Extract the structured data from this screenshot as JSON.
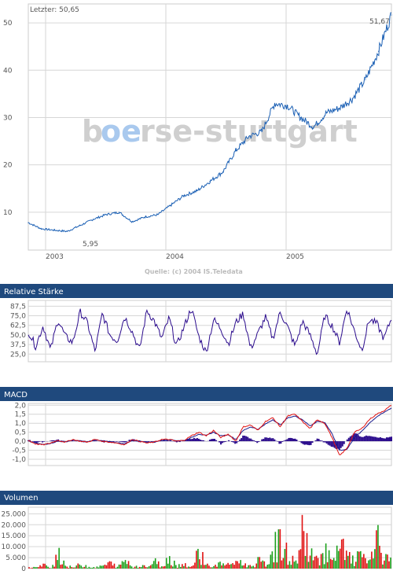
{
  "watermark": {
    "part1": "b",
    "part2": "oe",
    "part3": "rse-stuttgart"
  },
  "price_panel": {
    "last_label": "Letzter: 50,65",
    "source": "Quelle: (c) 2004 IS.Teledata",
    "min_label": "5,95",
    "max_label": "51,67"
  },
  "rsi_panel": {
    "title": "Relative Stärke"
  },
  "macd_panel": {
    "title": "MACD"
  },
  "volume_panel": {
    "title": "Volumen"
  },
  "colors": {
    "header_bg": "#1f497d",
    "price_line": "#1a5fb4",
    "rsi_line": "#2a0a8c",
    "macd_line": "#e01010",
    "signal_line": "#1a1a8c",
    "histogram": "#2a0a8c",
    "volume_up": "#1ba01b",
    "volume_down": "#e01010"
  },
  "chart_data": [
    {
      "type": "line",
      "title": "",
      "x_ticks": [
        "2003",
        "2004",
        "2005"
      ],
      "y_ticks": [
        "10",
        "20",
        "30",
        "40",
        "50"
      ],
      "ylim": [
        2,
        54
      ],
      "grid": true,
      "series": [
        {
          "name": "",
          "x": [
            "2002-11",
            "2003-01",
            "2003-03",
            "2003-05",
            "2003-06",
            "2003-07",
            "2003-09",
            "2003-11",
            "2004-01",
            "2004-02",
            "2004-03",
            "2004-05",
            "2004-07",
            "2004-08",
            "2004-09",
            "2004-10",
            "2004-11",
            "2004-12",
            "2005-01",
            "2005-02",
            "2005-03",
            "2005-04",
            "2005-05",
            "2005-06",
            "2005-07",
            "2005-08",
            "2005-09",
            "2005-10",
            "2005-11"
          ],
          "values": [
            7.8,
            6.5,
            6.2,
            5.95,
            7.2,
            8.5,
            9.5,
            10.0,
            8.0,
            9.0,
            9.5,
            11.5,
            13.5,
            14.5,
            16.5,
            18.5,
            23.0,
            26.0,
            27.0,
            33.0,
            32.5,
            30.0,
            28.0,
            31.0,
            32.0,
            34.0,
            38.0,
            44.0,
            51.67
          ]
        }
      ]
    },
    {
      "type": "line",
      "title": "Relative Stärke",
      "y_ticks": [
        "87,5",
        "75,0",
        "62,5",
        "50,0",
        "37,5",
        "25,0"
      ],
      "ylim": [
        15,
        95
      ],
      "series": [
        {
          "name": "",
          "values": [
            55,
            35,
            62,
            30,
            70,
            48,
            40,
            80,
            65,
            28,
            78,
            50,
            42,
            74,
            55,
            30,
            82,
            68,
            45,
            72,
            35,
            60,
            85,
            48,
            27,
            70,
            58,
            38,
            66,
            78,
            32,
            52,
            73,
            45,
            80,
            60,
            35,
            68,
            50,
            25,
            75,
            62,
            40,
            85,
            55,
            30,
            70,
            65,
            45,
            72
          ]
        }
      ]
    },
    {
      "type": "line",
      "title": "MACD",
      "y_ticks": [
        "2,0",
        "1,5",
        "1,0",
        "0,5",
        "0,0",
        "-0,5",
        "-1,0"
      ],
      "ylim": [
        -1.35,
        2.1
      ],
      "series": [
        {
          "name": "",
          "values": [
            0.05,
            -0.15,
            -0.2,
            -0.1,
            0.05,
            -0.05,
            0.1,
            0.0,
            -0.05,
            0.1,
            0.0,
            -0.05,
            -0.1,
            -0.2,
            0.1,
            0.0,
            -0.1,
            -0.05,
            0.1,
            0.1,
            0.0,
            0.05,
            0.3,
            0.5,
            0.3,
            0.6,
            0.2,
            0.4,
            0.0,
            0.8,
            0.9,
            0.6,
            1.1,
            1.3,
            0.8,
            1.4,
            1.5,
            1.1,
            0.7,
            1.2,
            1.0,
            0.2,
            -0.8,
            -0.4,
            0.5,
            0.7,
            1.2,
            1.5,
            1.7,
            2.0
          ]
        },
        {
          "name": "",
          "values": [
            0.0,
            -0.1,
            -0.18,
            -0.12,
            0.0,
            -0.03,
            0.06,
            0.02,
            -0.03,
            0.06,
            0.03,
            -0.02,
            -0.08,
            -0.15,
            0.02,
            0.02,
            -0.06,
            -0.05,
            0.05,
            0.08,
            0.04,
            0.04,
            0.2,
            0.4,
            0.32,
            0.5,
            0.3,
            0.36,
            0.1,
            0.6,
            0.8,
            0.66,
            0.95,
            1.2,
            0.9,
            1.3,
            1.4,
            1.2,
            0.85,
            1.1,
            1.05,
            0.4,
            -0.5,
            -0.45,
            0.2,
            0.55,
            1.0,
            1.35,
            1.6,
            1.85
          ]
        }
      ]
    },
    {
      "type": "bar",
      "title": "Volumen",
      "y_ticks": [
        "25.000",
        "20.000",
        "15.000",
        "10.000",
        "5.000",
        "0"
      ],
      "ylim": [
        0,
        28000
      ],
      "series": [
        {
          "name": "",
          "values": [
            1200,
            800,
            2500,
            600,
            12500,
            1800,
            900,
            3200,
            1500,
            700,
            2200,
            4000,
            1100,
            6500,
            900,
            2800,
            1300,
            5000,
            1700,
            8500,
            2000,
            3500,
            1200,
            13500,
            2600,
            1500,
            4200,
            2200,
            6000,
            3000,
            1800,
            5500,
            2800,
            15000,
            19500,
            8500,
            4200,
            27500,
            9500,
            6000,
            14500,
            3500,
            17000,
            8000,
            5500,
            12000,
            4000,
            20000,
            7000,
            10000
          ]
        }
      ]
    }
  ]
}
